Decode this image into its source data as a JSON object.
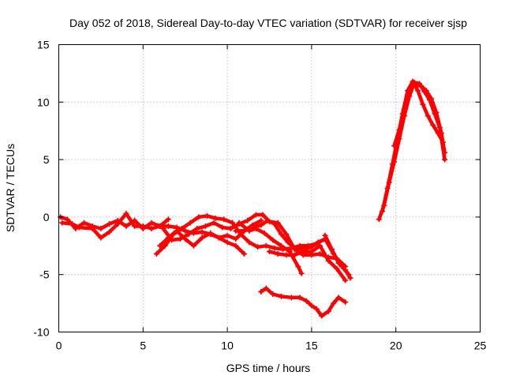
{
  "chart_data": {
    "type": "scatter",
    "title": "Day 052 of 2018, Sidereal Day-to-day VTEC variation (SDTVAR) for receiver sjsp",
    "xlabel": "GPS time / hours",
    "ylabel": "SDTVAR / TECUs",
    "xlim": [
      0,
      25
    ],
    "ylim": [
      -10,
      15
    ],
    "xticks": [
      0,
      5,
      10,
      15,
      20,
      25
    ],
    "yticks": [
      -10,
      -5,
      0,
      5,
      10,
      15
    ],
    "grid": true,
    "color": "#ff0000",
    "marker": "plus",
    "series": [
      {
        "name": "track-1",
        "points": [
          [
            0.1,
            0
          ],
          [
            0.5,
            -0.2
          ],
          [
            1,
            -1
          ],
          [
            1.5,
            -0.5
          ],
          [
            2,
            -0.8
          ],
          [
            2.5,
            -1
          ],
          [
            3,
            -0.6
          ],
          [
            3.5,
            -0.3
          ],
          [
            4,
            -0.8
          ],
          [
            4.5,
            -0.3
          ],
          [
            5,
            -1
          ],
          [
            5.5,
            -0.5
          ],
          [
            6,
            -0.8
          ],
          [
            6.5,
            -0.8
          ],
          [
            7,
            -0.9
          ],
          [
            7.5,
            -1.2
          ],
          [
            8,
            -1.4
          ],
          [
            8.5,
            -1.3
          ],
          [
            9,
            -1.5
          ],
          [
            9.5,
            -1.8
          ],
          [
            10,
            -1.6
          ],
          [
            10.5,
            -1.9
          ],
          [
            11,
            -1.2
          ],
          [
            11.5,
            -0.7
          ],
          [
            12,
            -0.3
          ]
        ]
      },
      {
        "name": "track-2",
        "points": [
          [
            0.2,
            -0.5
          ],
          [
            0.8,
            -0.6
          ],
          [
            1.2,
            -0.9
          ],
          [
            2,
            -1
          ],
          [
            2.5,
            -1.8
          ],
          [
            3,
            -1.3
          ],
          [
            3.5,
            -0.6
          ],
          [
            4,
            0.3
          ],
          [
            4.5,
            -0.8
          ],
          [
            5,
            -0.8
          ],
          [
            5.5,
            -1
          ],
          [
            6,
            -0.8
          ],
          [
            6.5,
            -0.2
          ]
        ]
      },
      {
        "name": "track-3",
        "points": [
          [
            5.8,
            -3.2
          ],
          [
            6.3,
            -2.5
          ],
          [
            6.8,
            -1.5
          ],
          [
            7.3,
            -1
          ],
          [
            7.8,
            -0.5
          ],
          [
            8.3,
            0
          ],
          [
            8.8,
            0.1
          ],
          [
            9.3,
            -0.1
          ],
          [
            9.8,
            -0.2
          ],
          [
            10.3,
            -0.5
          ],
          [
            10.8,
            -1.5
          ],
          [
            11.3,
            -2.2
          ],
          [
            11.8,
            -2.6
          ],
          [
            12.3,
            -2.5
          ],
          [
            12.8,
            -2.7
          ],
          [
            13.3,
            -2.8
          ],
          [
            13.8,
            -2.7
          ],
          [
            14.3,
            -2.5
          ],
          [
            14.8,
            -2.5
          ],
          [
            15.3,
            -2.3
          ],
          [
            15.8,
            -1.9
          ],
          [
            16.3,
            -3.2
          ],
          [
            16.8,
            -4.3
          ],
          [
            17.2,
            -5
          ]
        ]
      },
      {
        "name": "track-4",
        "points": [
          [
            6,
            -2.5
          ],
          [
            6.5,
            -1.8
          ],
          [
            7,
            -1.2
          ],
          [
            7.5,
            -1.9
          ],
          [
            8,
            -2.5
          ],
          [
            8.5,
            -1.8
          ],
          [
            9,
            -1.4
          ],
          [
            9.5,
            -1.8
          ],
          [
            10,
            -2.2
          ],
          [
            10.5,
            -2.5
          ],
          [
            11,
            -3.2
          ]
        ]
      },
      {
        "name": "track-5",
        "points": [
          [
            6.2,
            -1
          ],
          [
            6.7,
            -2
          ],
          [
            7.2,
            -1.9
          ],
          [
            7.7,
            -1.5
          ],
          [
            8.2,
            -1
          ],
          [
            8.7,
            -0.8
          ],
          [
            9.2,
            -0.5
          ],
          [
            9.7,
            -0.9
          ],
          [
            10.2,
            -1
          ],
          [
            10.7,
            -0.6
          ],
          [
            11.2,
            -0.3
          ],
          [
            11.7,
            0.2
          ],
          [
            12.1,
            0.2
          ],
          [
            12.5,
            -0.4
          ],
          [
            13,
            -0.5
          ],
          [
            13.5,
            -1.5
          ],
          [
            14,
            -2.8
          ],
          [
            14.5,
            -3.3
          ],
          [
            15,
            -3.3
          ],
          [
            15.5,
            -3.2
          ],
          [
            16,
            -3.5
          ],
          [
            16.5,
            -3.6
          ],
          [
            17,
            -4.3
          ]
        ]
      },
      {
        "name": "track-6",
        "points": [
          [
            10.7,
            -0.5
          ],
          [
            11.3,
            -1.2
          ],
          [
            11.7,
            -1
          ],
          [
            12.2,
            -1.4
          ],
          [
            12.7,
            -2
          ],
          [
            13.2,
            -2.5
          ],
          [
            13.7,
            -3
          ],
          [
            14.2,
            -4.3
          ],
          [
            14.4,
            -4.9
          ]
        ]
      },
      {
        "name": "track-7",
        "points": [
          [
            10.5,
            -1.2
          ],
          [
            11,
            -1.2
          ],
          [
            11.5,
            -0.9
          ],
          [
            12,
            -0.7
          ],
          [
            12.4,
            -0.3
          ],
          [
            12.8,
            -0.6
          ],
          [
            13.2,
            -1.5
          ],
          [
            13.6,
            -2.2
          ],
          [
            14,
            -2.7
          ],
          [
            14.5,
            -2.8
          ],
          [
            15,
            -2.6
          ],
          [
            15.4,
            -2.2
          ],
          [
            15.8,
            -1.9
          ]
        ]
      },
      {
        "name": "track-8",
        "points": [
          [
            12.5,
            -3
          ],
          [
            13,
            -3.2
          ],
          [
            13.5,
            -3.3
          ],
          [
            14,
            -3.3
          ],
          [
            14.5,
            -3
          ],
          [
            15,
            -3
          ],
          [
            15.5,
            -2.5
          ],
          [
            16,
            -3.8
          ],
          [
            16.5,
            -4.5
          ],
          [
            17,
            -5.5
          ]
        ]
      },
      {
        "name": "track-9",
        "points": [
          [
            15.8,
            -1.6
          ],
          [
            16.2,
            -2.8
          ],
          [
            16.6,
            -4
          ],
          [
            17,
            -4.6
          ],
          [
            17.3,
            -5.3
          ]
        ]
      },
      {
        "name": "track-10",
        "points": [
          [
            12,
            -6.5
          ],
          [
            12.3,
            -6.2
          ],
          [
            12.7,
            -6.7
          ],
          [
            13.2,
            -6.9
          ],
          [
            13.8,
            -7
          ],
          [
            14.3,
            -7
          ],
          [
            14.7,
            -7.3
          ],
          [
            15,
            -7.7
          ],
          [
            15.3,
            -8
          ],
          [
            15.6,
            -8.6
          ],
          [
            16,
            -8.2
          ],
          [
            16.3,
            -7.5
          ],
          [
            16.6,
            -7
          ],
          [
            17,
            -7.4
          ]
        ]
      },
      {
        "name": "track-11",
        "points": [
          [
            19,
            -0.2
          ],
          [
            19.3,
            1
          ],
          [
            19.6,
            3
          ],
          [
            19.9,
            4.8
          ],
          [
            20.2,
            6.8
          ],
          [
            20.5,
            8.8
          ],
          [
            20.8,
            10.5
          ],
          [
            21.1,
            11.7
          ],
          [
            21.4,
            11.6
          ],
          [
            21.7,
            10.9
          ],
          [
            22,
            10.2
          ],
          [
            22.3,
            9
          ],
          [
            22.6,
            7.8
          ],
          [
            22.9,
            5
          ]
        ]
      },
      {
        "name": "track-12",
        "points": [
          [
            19.2,
            0.5
          ],
          [
            19.5,
            2.5
          ],
          [
            19.8,
            4.6
          ],
          [
            20.1,
            6.8
          ],
          [
            20.4,
            9
          ],
          [
            20.7,
            11
          ],
          [
            21,
            11.8
          ],
          [
            21.3,
            11
          ],
          [
            21.6,
            9.8
          ],
          [
            21.9,
            8.8
          ],
          [
            22.2,
            8
          ],
          [
            22.5,
            7.3
          ],
          [
            22.8,
            6.5
          ]
        ]
      },
      {
        "name": "track-13",
        "points": [
          [
            19.9,
            6.2
          ],
          [
            20.2,
            7.6
          ],
          [
            20.5,
            9.4
          ],
          [
            20.8,
            10.9
          ],
          [
            21.1,
            11.5
          ],
          [
            21.5,
            11.4
          ],
          [
            21.8,
            11
          ],
          [
            22.1,
            10.3
          ],
          [
            22.4,
            9.1
          ],
          [
            22.7,
            7.3
          ],
          [
            22.9,
            5.6
          ]
        ]
      }
    ]
  }
}
